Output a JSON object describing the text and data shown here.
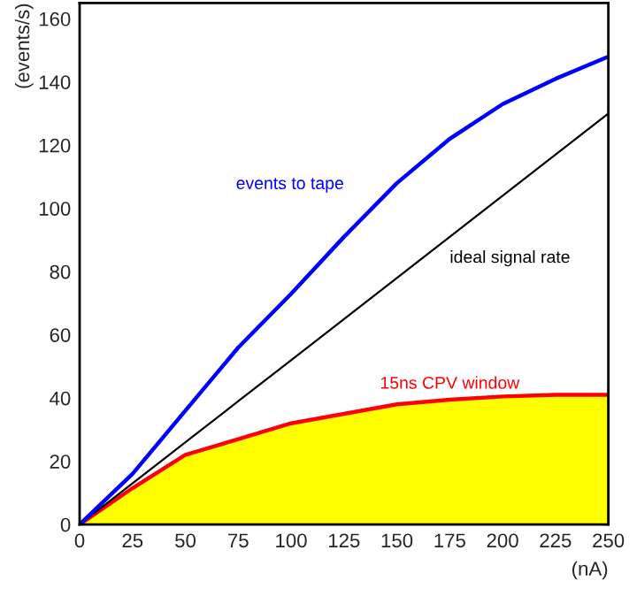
{
  "chart_data": {
    "type": "line",
    "xlabel": "(nA)",
    "ylabel": "(events/s)",
    "x": [
      0,
      25,
      50,
      75,
      100,
      125,
      150,
      175,
      200,
      225,
      250
    ],
    "series": [
      {
        "type": "area",
        "name": "15ns CPV window",
        "color": "#ff0000",
        "colors": [
          "#ffff00",
          "#ffff00",
          "#ffff00",
          "#ffff00",
          "#ffff00",
          "#ffff00",
          "#ffff00",
          "#ffff00",
          "#ffff00",
          "#ffff00",
          "#ffff00"
        ],
        "values": [
          0,
          11.5,
          22,
          27,
          32,
          35,
          38,
          39.5,
          40.5,
          41,
          41
        ]
      },
      {
        "name": "ideal signal rate",
        "color": "#000000",
        "values": [
          0,
          13,
          26,
          39,
          52,
          65,
          78,
          91,
          104,
          117,
          130
        ]
      },
      {
        "name": "events to tape",
        "color": "#0000ff",
        "values": [
          0,
          16,
          36,
          56,
          73,
          91,
          108,
          122,
          133,
          141,
          148
        ]
      }
    ],
    "xlim": [
      0,
      250
    ],
    "ylim": [
      0,
      165
    ],
    "xticks": [
      0,
      25,
      50,
      75,
      100,
      125,
      150,
      175,
      200,
      225,
      250
    ],
    "yticks": [
      0,
      20,
      40,
      60,
      80,
      100,
      120,
      140,
      160
    ],
    "grid": false,
    "legend": false
  }
}
